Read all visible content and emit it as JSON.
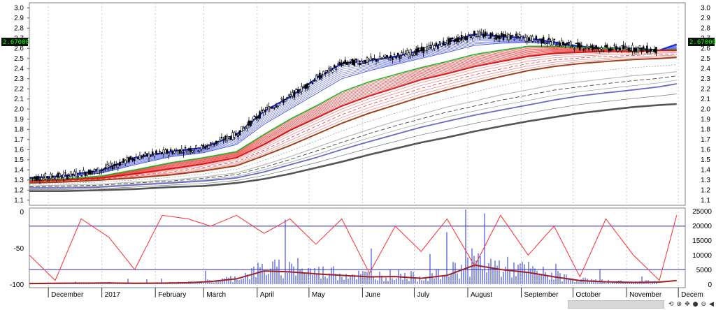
{
  "colors": {
    "candles": "#000000",
    "short_ma": "#1a2fd6",
    "long_ma": "#d81818",
    "oscillator": "#ff2b2b",
    "volume": "#1f2fd6",
    "volume_ma": "#a02020"
  },
  "price_panel": {
    "ytick_labels": [
      "3.0",
      "2.9",
      "2.8",
      "2.7",
      "2.6",
      "2.5",
      "2.4",
      "2.3",
      "2.2",
      "2.1",
      "2.0",
      "1.9",
      "1.8",
      "1.7",
      "1.6",
      "1.5",
      "1.4",
      "1.3",
      "1.2",
      "1.1"
    ],
    "last_price_label": "2.67000"
  },
  "oscillator_panel": {
    "ytick_labels": [
      "0",
      "-50",
      "-100"
    ],
    "volume_tick_labels": [
      "25000",
      "20000",
      "15000",
      "10000",
      "5000",
      "0"
    ]
  },
  "time_axis": {
    "labels": [
      "December",
      "2017",
      "February",
      "March",
      "April",
      "May",
      "June",
      "July",
      "August",
      "September",
      "October",
      "November",
      "Decem"
    ]
  },
  "nav": {
    "icons": [
      "reset-icon",
      "zoom-in-icon",
      "zoom-out-icon",
      "move-icon",
      "plus-icon",
      "circle-icon",
      "minus-icon",
      "prev-icon",
      "next-icon",
      "end-icon"
    ]
  },
  "chart_data": [
    {
      "type": "line",
      "title": "",
      "xlabel": "",
      "ylabel": "",
      "ylim": [
        1.05,
        3.05
      ],
      "x": [
        "2016-11-20",
        "2016-12-10",
        "2017-01-01",
        "2017-01-20",
        "2017-02-10",
        "2017-03-01",
        "2017-03-20",
        "2017-04-05",
        "2017-04-20",
        "2017-05-05",
        "2017-05-20",
        "2017-06-05",
        "2017-06-20",
        "2017-07-05",
        "2017-07-20",
        "2017-08-05",
        "2017-08-20",
        "2017-09-05",
        "2017-09-20",
        "2017-10-05",
        "2017-10-20",
        "2017-11-05",
        "2017-11-20",
        "2017-11-30"
      ],
      "series": [
        {
          "values": [
            1.32,
            1.34,
            1.4,
            1.52,
            1.58,
            1.62,
            1.75,
            1.98,
            2.12,
            2.3,
            2.45,
            2.48,
            2.52,
            2.58,
            2.66,
            2.74,
            2.72,
            2.7,
            2.66,
            2.62,
            2.6,
            2.6,
            2.58,
            2.64
          ]
        },
        {
          "values": [
            1.31,
            1.33,
            1.37,
            1.45,
            1.53,
            1.57,
            1.65,
            1.85,
            2.0,
            2.15,
            2.3,
            2.38,
            2.44,
            2.5,
            2.56,
            2.63,
            2.65,
            2.66,
            2.64,
            2.61,
            2.6,
            2.59,
            2.58,
            2.6
          ]
        },
        {
          "values": [
            1.3,
            1.31,
            1.34,
            1.4,
            1.47,
            1.52,
            1.58,
            1.75,
            1.9,
            2.03,
            2.17,
            2.27,
            2.34,
            2.41,
            2.47,
            2.54,
            2.58,
            2.62,
            2.62,
            2.61,
            2.6,
            2.59,
            2.58,
            2.59
          ]
        },
        {
          "values": [
            1.29,
            1.3,
            1.32,
            1.36,
            1.41,
            1.46,
            1.52,
            1.65,
            1.79,
            1.91,
            2.03,
            2.13,
            2.21,
            2.29,
            2.35,
            2.42,
            2.47,
            2.52,
            2.55,
            2.56,
            2.57,
            2.57,
            2.58,
            2.58
          ]
        },
        {
          "values": [
            1.27,
            1.28,
            1.3,
            1.32,
            1.35,
            1.39,
            1.44,
            1.54,
            1.64,
            1.75,
            1.86,
            1.96,
            2.04,
            2.12,
            2.19,
            2.26,
            2.32,
            2.38,
            2.42,
            2.45,
            2.47,
            2.49,
            2.5,
            2.51
          ]
        },
        {
          "values": [
            1.24,
            1.25,
            1.26,
            1.28,
            1.3,
            1.33,
            1.37,
            1.45,
            1.53,
            1.62,
            1.71,
            1.8,
            1.88,
            1.95,
            2.02,
            2.08,
            2.14,
            2.19,
            2.24,
            2.27,
            2.3,
            2.33,
            2.35,
            2.37
          ]
        },
        {
          "values": [
            1.22,
            1.22,
            1.23,
            1.25,
            1.27,
            1.29,
            1.32,
            1.38,
            1.45,
            1.52,
            1.6,
            1.68,
            1.75,
            1.82,
            1.88,
            1.94,
            1.99,
            2.04,
            2.09,
            2.13,
            2.16,
            2.19,
            2.22,
            2.25
          ]
        },
        {
          "values": [
            1.19,
            1.19,
            1.2,
            1.21,
            1.23,
            1.24,
            1.27,
            1.31,
            1.36,
            1.42,
            1.48,
            1.55,
            1.61,
            1.67,
            1.72,
            1.78,
            1.83,
            1.88,
            1.92,
            1.96,
            1.99,
            2.02,
            2.04,
            2.05
          ]
        }
      ]
    },
    {
      "type": "line",
      "title": "",
      "ylim": [
        -105,
        5
      ],
      "y2lim": [
        -1200,
        26000
      ],
      "x": [
        "2016-11-20",
        "2016-12-05",
        "2016-12-20",
        "2017-01-05",
        "2017-01-20",
        "2017-02-05",
        "2017-02-20",
        "2017-03-05",
        "2017-03-20",
        "2017-04-05",
        "2017-04-20",
        "2017-05-05",
        "2017-05-20",
        "2017-06-05",
        "2017-06-20",
        "2017-07-05",
        "2017-07-20",
        "2017-08-05",
        "2017-08-20",
        "2017-09-05",
        "2017-09-20",
        "2017-10-05",
        "2017-10-20",
        "2017-11-05",
        "2017-11-20",
        "2017-11-30"
      ],
      "series": [
        {
          "values": [
            -60,
            -95,
            -10,
            -35,
            -80,
            -5,
            -10,
            -20,
            -5,
            -30,
            -10,
            -45,
            -10,
            -85,
            -20,
            -55,
            -10,
            -75,
            -5,
            -60,
            -20,
            -90,
            -10,
            -60,
            -95,
            -5
          ]
        },
        {
          "values": [
            200,
            300,
            350,
            400,
            300,
            350,
            500,
            900,
            1800,
            4500,
            4200,
            3500,
            3000,
            2500,
            2600,
            2000,
            3000,
            6500,
            5000,
            4000,
            2500,
            1200,
            800,
            600,
            700,
            1200
          ]
        }
      ],
      "reference_lines": [
        -20,
        -80
      ]
    }
  ]
}
